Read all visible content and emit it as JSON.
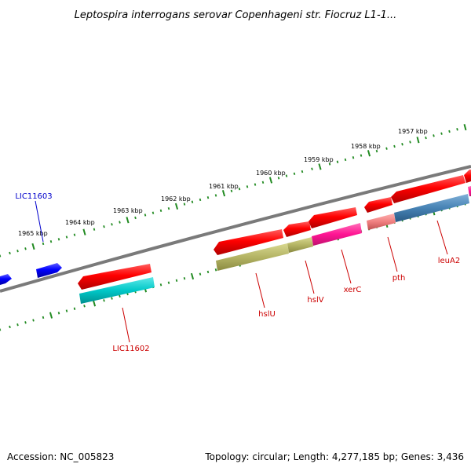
{
  "title": "Leptospira interrogans serovar Copenhageni str. Fiocruz L1-1...",
  "ticks": [
    {
      "label": "1965 kbp"
    },
    {
      "label": "1964 kbp"
    },
    {
      "label": "1963 kbp"
    },
    {
      "label": "1962 kbp"
    },
    {
      "label": "1961 kbp"
    },
    {
      "label": "1960 kbp"
    },
    {
      "label": "1959 kbp"
    },
    {
      "label": "1958 kbp"
    },
    {
      "label": "1957 kbp"
    }
  ],
  "genes_forward": [
    {
      "name": "LIC11603",
      "color": "#0000ff"
    }
  ],
  "genes_reverse": [
    {
      "name": "LIC11602",
      "color": "#cc0000"
    },
    {
      "name": "hslU",
      "color": "#cc0000"
    },
    {
      "name": "hslV",
      "color": "#cc0000"
    },
    {
      "name": "xerC",
      "color": "#cc0000"
    },
    {
      "name": "pth",
      "color": "#cc0000"
    },
    {
      "name": "leuA2",
      "color": "#cc0000"
    }
  ],
  "colors": {
    "forward_cds": "#0000ff",
    "reverse_cds": "#ff0000",
    "backbone": "#808080",
    "tick": "#228b22",
    "teal": "#00c8c8",
    "olive": "#b4b464",
    "magenta": "#ff1493",
    "salmon": "#f08080",
    "steelblue": "#4682b4"
  },
  "footer": {
    "accession": "Accession: NC_005823",
    "stats": "Topology: circular; Length: 4,277,185 bp; Genes: 3,436"
  }
}
